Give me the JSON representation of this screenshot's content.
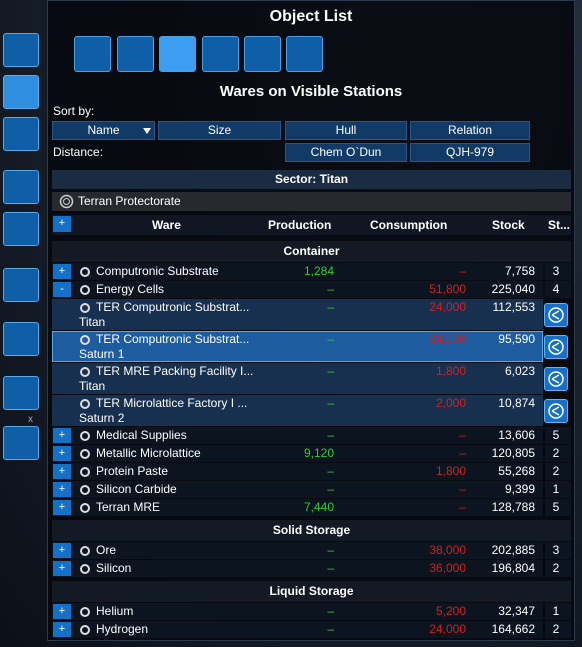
{
  "title": "Object List",
  "subtitle": "Wares on Visible Stations",
  "sort_label": "Sort by:",
  "sort_buttons": [
    "Name",
    "Size",
    "Hull",
    "Relation"
  ],
  "distance_label": "Distance:",
  "distance_buttons": [
    "Chem O`Dun",
    "QJH-979"
  ],
  "sidebar_close": "x",
  "sector": "Sector: Titan",
  "faction": "Terran Protectorate",
  "columns": {
    "toggle": "+",
    "ware": "Ware",
    "production": "Production",
    "consumption": "Consumption",
    "stock": "Stock",
    "stations": "St..."
  },
  "groups": [
    {
      "title": "Container",
      "rows": [
        {
          "toggle": "+",
          "name": "Computronic Substrate",
          "production": "1,284",
          "consumption": "–",
          "stock": "7,758",
          "stations": "3"
        },
        {
          "toggle": "-",
          "name": "Energy Cells",
          "production": "–",
          "consumption": "51,800",
          "stock": "225,040",
          "stations": "4"
        },
        {
          "name": "TER Computronic Substrat...",
          "location": "Titan",
          "production": "–",
          "consumption": "24,000",
          "stock": "112,553"
        },
        {
          "name": "TER Computronic Substrat...",
          "location": "Saturn 1",
          "production": "–",
          "consumption": "24,000",
          "stock": "95,590",
          "selected": true
        },
        {
          "name": "TER MRE Packing Facility I...",
          "location": "Titan",
          "production": "–",
          "consumption": "1,800",
          "stock": "6,023"
        },
        {
          "name": "TER Microlattice Factory I ...",
          "location": "Saturn 2",
          "production": "–",
          "consumption": "2,000",
          "stock": "10,874"
        },
        {
          "toggle": "+",
          "name": "Medical Supplies",
          "production": "–",
          "consumption": "–",
          "stock": "13,606",
          "stations": "5"
        },
        {
          "toggle": "+",
          "name": "Metallic Microlattice",
          "production": "9,120",
          "consumption": "–",
          "stock": "120,805",
          "stations": "2"
        },
        {
          "toggle": "+",
          "name": "Protein Paste",
          "production": "–",
          "consumption": "1,800",
          "stock": "55,268",
          "stations": "2"
        },
        {
          "toggle": "+",
          "name": "Silicon Carbide",
          "production": "–",
          "consumption": "–",
          "stock": "9,399",
          "stations": "1"
        },
        {
          "toggle": "+",
          "name": "Terran MRE",
          "production": "7,440",
          "consumption": "–",
          "stock": "128,788",
          "stations": "5"
        }
      ]
    },
    {
      "title": "Solid Storage",
      "rows": [
        {
          "toggle": "+",
          "name": "Ore",
          "production": "–",
          "consumption": "38,000",
          "stock": "202,885",
          "stations": "3"
        },
        {
          "toggle": "+",
          "name": "Silicon",
          "production": "–",
          "consumption": "36,000",
          "stock": "196,804",
          "stations": "2"
        }
      ]
    },
    {
      "title": "Liquid Storage",
      "rows": [
        {
          "toggle": "+",
          "name": "Helium",
          "production": "–",
          "consumption": "5,200",
          "stock": "32,347",
          "stations": "1"
        },
        {
          "toggle": "+",
          "name": "Hydrogen",
          "production": "–",
          "consumption": "24,000",
          "stock": "164,662",
          "stations": "2"
        }
      ]
    }
  ]
}
